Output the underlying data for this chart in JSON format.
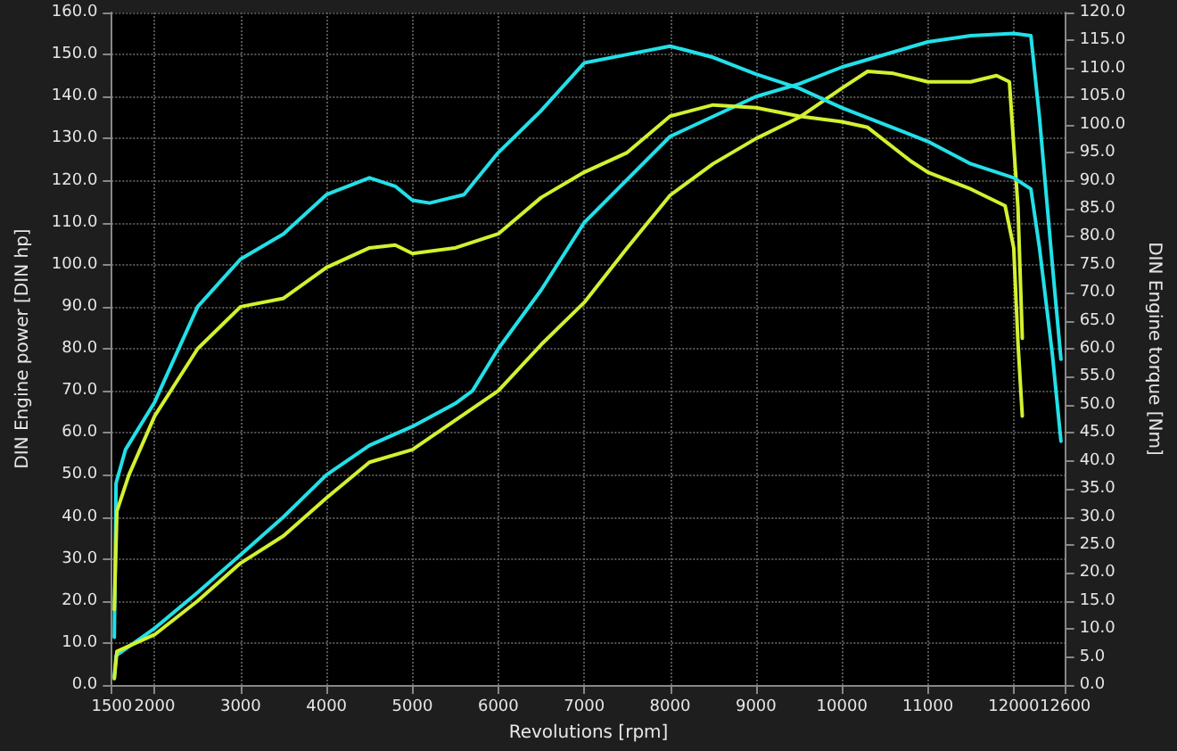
{
  "chart_data": {
    "type": "line",
    "xlabel": "Revolutions [rpm]",
    "ylabel": "DIN Engine power [DIN hp]",
    "y2label": "DIN Engine torque [Nm]",
    "xlim": [
      1500,
      12600
    ],
    "xticks": [
      1500,
      2000,
      3000,
      4000,
      5000,
      6000,
      7000,
      8000,
      9000,
      10000,
      11000,
      12000,
      12600
    ],
    "ylim": [
      0,
      160
    ],
    "yticks": [
      {
        "value": 0,
        "label": "0.0"
      },
      {
        "value": 10,
        "label": "10.0"
      },
      {
        "value": 20,
        "label": "20.0"
      },
      {
        "value": 30,
        "label": "30.0"
      },
      {
        "value": 40,
        "label": "40.0"
      },
      {
        "value": 50,
        "label": "50.0"
      },
      {
        "value": 60,
        "label": "60.0"
      },
      {
        "value": 70,
        "label": "70.0"
      },
      {
        "value": 80,
        "label": "80.0"
      },
      {
        "value": 90,
        "label": "90.0"
      },
      {
        "value": 100,
        "label": "100.0"
      },
      {
        "value": 110,
        "label": "110.0"
      },
      {
        "value": 120,
        "label": "120.0"
      },
      {
        "value": 130,
        "label": "130.0"
      },
      {
        "value": 140,
        "label": "140.0"
      },
      {
        "value": 150,
        "label": "150.0"
      },
      {
        "value": 160,
        "label": "160.0"
      }
    ],
    "y2lim": [
      0,
      120
    ],
    "y2ticks": [
      {
        "value": 0,
        "label": "0.0"
      },
      {
        "value": 5,
        "label": "5.0"
      },
      {
        "value": 10,
        "label": "10.0"
      },
      {
        "value": 15,
        "label": "15.0"
      },
      {
        "value": 20,
        "label": "20.0"
      },
      {
        "value": 25,
        "label": "25.0"
      },
      {
        "value": 30,
        "label": "30.0"
      },
      {
        "value": 35,
        "label": "35.0"
      },
      {
        "value": 40,
        "label": "40.0"
      },
      {
        "value": 45,
        "label": "45.0"
      },
      {
        "value": 50,
        "label": "50.0"
      },
      {
        "value": 55,
        "label": "55.0"
      },
      {
        "value": 60,
        "label": "60.0"
      },
      {
        "value": 65,
        "label": "65.0"
      },
      {
        "value": 70,
        "label": "70.0"
      },
      {
        "value": 75,
        "label": "75.0"
      },
      {
        "value": 80,
        "label": "80.0"
      },
      {
        "value": 85,
        "label": "85.0"
      },
      {
        "value": 90,
        "label": "90.0"
      },
      {
        "value": 95,
        "label": "95.0"
      },
      {
        "value": 100,
        "label": "100.0"
      },
      {
        "value": 105,
        "label": "105.0"
      },
      {
        "value": 110,
        "label": "110.0"
      },
      {
        "value": 115,
        "label": "115.0"
      },
      {
        "value": 120,
        "label": "120.0"
      }
    ],
    "grid": true,
    "marker": "none",
    "line_style": "solid",
    "series": [
      {
        "color": "#22e0e8",
        "x": [
          1530,
          1550,
          2000,
          2500,
          3000,
          3500,
          4000,
          4500,
          5000,
          5500,
          5700,
          6000,
          6500,
          7000,
          8000,
          9000,
          9500,
          10000,
          11000,
          11500,
          12000,
          12200,
          12300,
          12450,
          12550
        ],
        "values": [
          2,
          7,
          13.5,
          22,
          31,
          40,
          50,
          57,
          61.5,
          67,
          70,
          80,
          94,
          110,
          130.5,
          140,
          143,
          147,
          153,
          154.5,
          155,
          154.5,
          135,
          100,
          77.5
        ]
      },
      {
        "color": "#d4f030",
        "x": [
          1530,
          1560,
          2000,
          2500,
          3000,
          3500,
          4000,
          4500,
          5000,
          5500,
          6000,
          6500,
          7000,
          7500,
          8000,
          8500,
          9000,
          9500,
          10000,
          10300,
          10600,
          11000,
          11500,
          11800,
          11950,
          12050,
          12100
        ],
        "values": [
          1.5,
          8,
          12,
          20,
          29,
          35.5,
          44.5,
          53,
          56,
          63,
          70,
          81,
          91,
          104,
          116.5,
          124,
          130,
          135,
          142,
          146,
          145.5,
          143.5,
          143.5,
          145,
          143.5,
          113.5,
          82.5
        ]
      },
      {
        "color": "#22e0e8",
        "axis": "y2",
        "x": [
          1530,
          1550,
          1660,
          2000,
          2500,
          3000,
          3500,
          4000,
          4500,
          4800,
          5000,
          5200,
          5600,
          6000,
          6500,
          7000,
          7500,
          8000,
          8500,
          9000,
          9500,
          10000,
          10500,
          11000,
          11500,
          12000,
          12200,
          12300,
          12450,
          12550
        ],
        "values": [
          8.5,
          36,
          42,
          50.5,
          67.5,
          76,
          80.5,
          87.5,
          90.5,
          89,
          86.5,
          86,
          87.5,
          95,
          102.5,
          111,
          112.5,
          114,
          112,
          109,
          106.5,
          103,
          100,
          97,
          93,
          90.5,
          88.5,
          78,
          59,
          43.5
        ]
      },
      {
        "color": "#d4f030",
        "axis": "y2",
        "x": [
          1530,
          1560,
          1700,
          2000,
          2500,
          3000,
          3500,
          4000,
          4500,
          4800,
          5000,
          5500,
          6000,
          6500,
          7000,
          7500,
          8000,
          8500,
          9000,
          9500,
          10000,
          10300,
          10800,
          11000,
          11500,
          11900,
          12000,
          12050,
          12100
        ],
        "values": [
          13.5,
          31,
          37.5,
          48,
          60,
          67.5,
          69,
          74.5,
          78,
          78.5,
          77,
          78,
          80.5,
          87,
          91.5,
          95,
          101.5,
          103.5,
          103,
          101.5,
          100.5,
          99.5,
          93.5,
          91.5,
          88.5,
          85.5,
          78,
          61,
          48
        ]
      }
    ]
  }
}
